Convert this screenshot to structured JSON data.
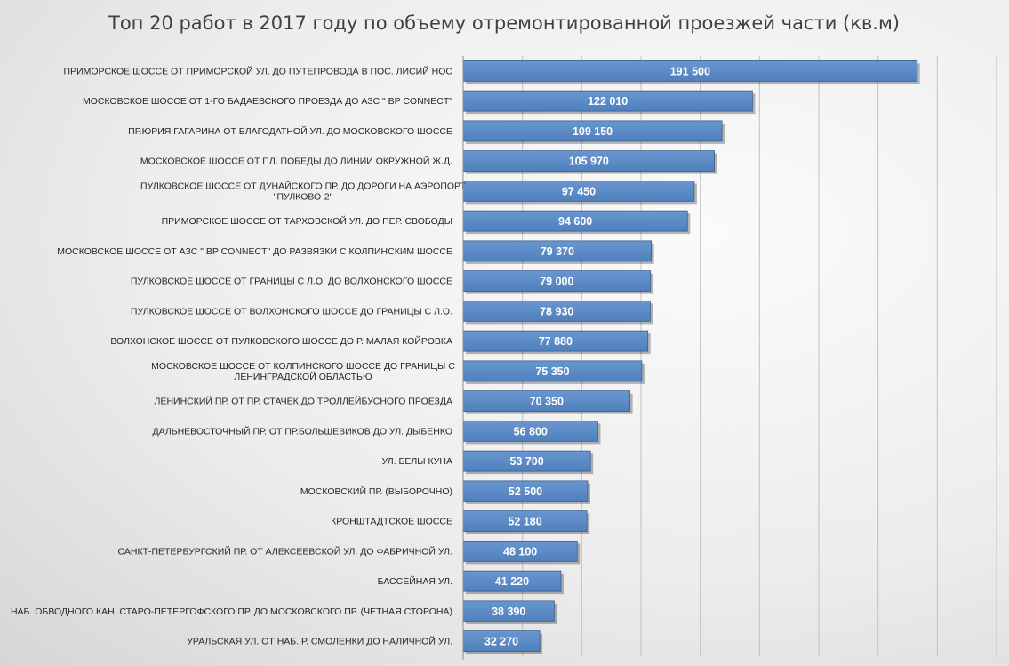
{
  "chart_data": {
    "type": "bar",
    "orientation": "horizontal",
    "title": "Топ 20 работ в 2017 году по объему отремонтированной проезжей части (кв.м)",
    "xlabel": "",
    "ylabel": "",
    "xlim": [
      0,
      225000
    ],
    "grid": true,
    "legend": "none",
    "bar_color": "#4f81bd",
    "categories": [
      [
        "ПРИМОРСКОЕ ШОССЕ ОТ ПРИМОРСКОЙ УЛ. ДО ПУТЕПРОВОДА В ПОС. ЛИСИЙ НОС"
      ],
      [
        "МОСКОВСКОЕ ШОССЕ  ОТ 1-ГО БАДАЕВСКОГО ПРОЕЗДА ДО  АЗС \" BP CONNECT\""
      ],
      [
        "ПР.ЮРИЯ ГАГАРИНА ОТ БЛАГОДАТНОЙ УЛ. ДО МОСКОВСКОГО ШОССЕ"
      ],
      [
        "МОСКОВСКОЕ ШОССЕ ОТ ПЛ. ПОБЕДЫ ДО ЛИНИИ ОКРУЖНОЙ Ж.Д."
      ],
      [
        "ПУЛКОВСКОЕ ШОССЕ  ОТ ДУНАЙСКОГО ПР. ДО ДОРОГИ НА АЭРОПОРТ",
        "\"ПУЛКОВО-2\""
      ],
      [
        "ПРИМОРСКОЕ ШОССЕ ОТ ТАРХОВСКОЙ УЛ. ДО ПЕР. СВОБОДЫ"
      ],
      [
        "МОСКОВСКОЕ ШОССЕ   ОТ АЗС \" BP CONNECT\" ДО  РАЗВЯЗКИ С КОЛПИНСКИМ ШОССЕ"
      ],
      [
        "ПУЛКОВСКОЕ ШОССЕ ОТ ГРАНИЦЫ С Л.О. ДО ВОЛХОНСКОГО ШОССЕ"
      ],
      [
        "ПУЛКОВСКОЕ ШОССЕ ОТ ВОЛХОНСКОГО ШОССЕ ДО ГРАНИЦЫ С Л.О."
      ],
      [
        "ВОЛХОНСКОЕ ШОССЕ ОТ ПУЛКОВСКОГО ШОССЕ ДО Р. МАЛАЯ КОЙРОВКА"
      ],
      [
        "МОСКОВСКОЕ ШОССЕ ОТ КОЛПИНСКОГО ШОССЕ ДО ГРАНИЦЫ С",
        "ЛЕНИНГРАДСКОЙ ОБЛАСТЬЮ"
      ],
      [
        "ЛЕНИНСКИЙ ПР. ОТ ПР. СТАЧЕК ДО ТРОЛЛЕЙБУСНОГО ПРОЕЗДА"
      ],
      [
        "ДАЛЬНЕВОСТОЧНЫЙ ПР. ОТ ПР.БОЛЬШЕВИКОВ ДО УЛ. ДЫБЕНКО"
      ],
      [
        "УЛ. БЕЛЫ КУНА"
      ],
      [
        "МОСКОВСКИЙ ПР. (ВЫБОРОЧНО)"
      ],
      [
        "КРОНШТАДТСКОЕ ШОССЕ"
      ],
      [
        "САНКТ-ПЕТЕРБУРГСКИЙ ПР. ОТ АЛЕКСЕЕВСКОЙ УЛ. ДО ФАБРИЧНОЙ УЛ."
      ],
      [
        "БАССЕЙНАЯ УЛ."
      ],
      [
        "НАБ. ОБВОДНОГО КАН. СТАРО-ПЕТЕРГОФСКОГО ПР. ДО МОСКОВСКОГО ПР. (ЧЕТНАЯ СТОРОНА)"
      ],
      [
        "УРАЛЬСКАЯ УЛ. ОТ НАБ. Р. СМОЛЕНКИ ДО НАЛИЧНОЙ УЛ."
      ]
    ],
    "values": [
      191500,
      122010,
      109150,
      105970,
      97450,
      94600,
      79370,
      79000,
      78930,
      77880,
      75350,
      70350,
      56800,
      53700,
      52500,
      52180,
      48100,
      41220,
      38390,
      32270
    ],
    "value_labels": [
      "191 500",
      "122 010",
      "109 150",
      "105 970",
      "97 450",
      "94 600",
      "79 370",
      "79 000",
      "78 930",
      "77 880",
      "75 350",
      "70 350",
      "56 800",
      "53 700",
      "52 500",
      "52 180",
      "48 100",
      "41 220",
      "38 390",
      "32 270"
    ]
  }
}
